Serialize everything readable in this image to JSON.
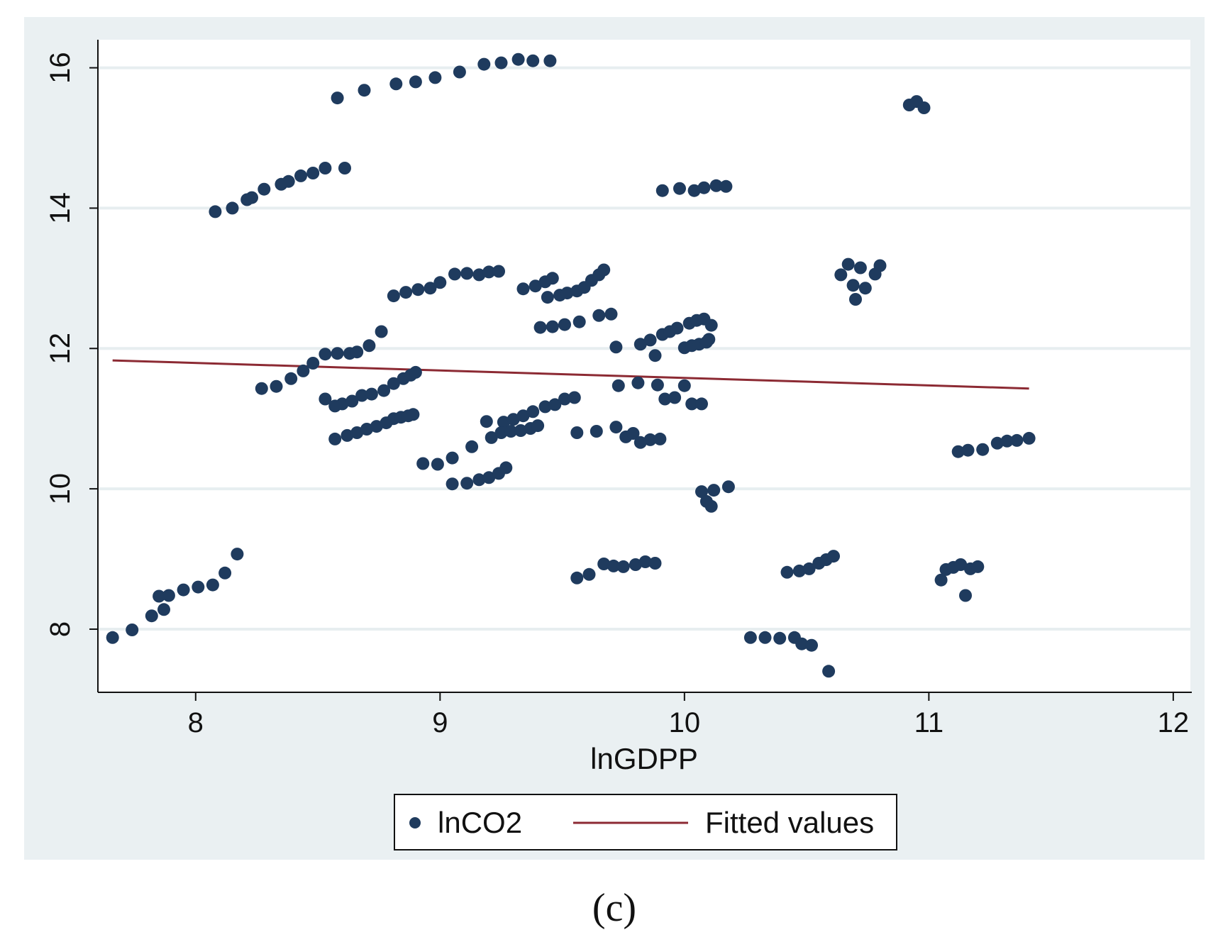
{
  "chart_data": {
    "type": "scatter",
    "panel_label": "(c)",
    "xlabel": "lnGDPP",
    "ylabel": "",
    "xlim": [
      7.6,
      12.07
    ],
    "ylim": [
      7.1,
      16.4
    ],
    "xticks": [
      8,
      9,
      10,
      11,
      12
    ],
    "xtick_labels": [
      "8",
      "9",
      "10",
      "11",
      "12"
    ],
    "yticks": [
      8,
      10,
      12,
      14,
      16
    ],
    "ytick_labels": [
      "8",
      "10",
      "12",
      "14",
      "16"
    ],
    "grid": "horizontal",
    "legend": {
      "position": "bottom",
      "entries": [
        "lnCO2",
        "Fitted values"
      ]
    },
    "colors": {
      "scatter": "#1f3b5e",
      "fitted": "#8c2a33",
      "plot_region": "#ffffff",
      "outer_region": "#eaf0f2",
      "grid": "#e7eef0"
    },
    "series": [
      {
        "name": "lnCO2",
        "kind": "scatter",
        "points": [
          [
            7.66,
            7.88
          ],
          [
            7.74,
            7.99
          ],
          [
            7.82,
            8.19
          ],
          [
            7.85,
            8.47
          ],
          [
            7.87,
            8.28
          ],
          [
            7.89,
            8.48
          ],
          [
            7.95,
            8.56
          ],
          [
            8.01,
            8.6
          ],
          [
            8.07,
            8.63
          ],
          [
            8.12,
            8.8
          ],
          [
            8.17,
            9.07
          ],
          [
            8.08,
            13.95
          ],
          [
            8.15,
            14.0
          ],
          [
            8.21,
            14.12
          ],
          [
            8.23,
            14.15
          ],
          [
            8.28,
            14.27
          ],
          [
            8.35,
            14.34
          ],
          [
            8.38,
            14.38
          ],
          [
            8.43,
            14.46
          ],
          [
            8.48,
            14.5
          ],
          [
            8.53,
            14.57
          ],
          [
            8.61,
            14.57
          ],
          [
            8.58,
            15.57
          ],
          [
            8.69,
            15.68
          ],
          [
            8.82,
            15.77
          ],
          [
            8.9,
            15.8
          ],
          [
            8.98,
            15.86
          ],
          [
            9.08,
            15.94
          ],
          [
            9.18,
            16.05
          ],
          [
            9.25,
            16.07
          ],
          [
            9.32,
            16.12
          ],
          [
            9.38,
            16.1
          ],
          [
            9.45,
            16.1
          ],
          [
            8.27,
            11.43
          ],
          [
            8.33,
            11.46
          ],
          [
            8.39,
            11.57
          ],
          [
            8.44,
            11.68
          ],
          [
            8.48,
            11.79
          ],
          [
            8.53,
            11.92
          ],
          [
            8.58,
            11.93
          ],
          [
            8.63,
            11.93
          ],
          [
            8.66,
            11.95
          ],
          [
            8.71,
            12.04
          ],
          [
            8.76,
            12.24
          ],
          [
            8.53,
            11.28
          ],
          [
            8.57,
            11.18
          ],
          [
            8.6,
            11.21
          ],
          [
            8.64,
            11.25
          ],
          [
            8.68,
            11.33
          ],
          [
            8.72,
            11.35
          ],
          [
            8.77,
            11.4
          ],
          [
            8.81,
            11.5
          ],
          [
            8.85,
            11.57
          ],
          [
            8.88,
            11.62
          ],
          [
            8.9,
            11.66
          ],
          [
            8.57,
            10.71
          ],
          [
            8.62,
            10.76
          ],
          [
            8.66,
            10.8
          ],
          [
            8.7,
            10.85
          ],
          [
            8.74,
            10.89
          ],
          [
            8.78,
            10.94
          ],
          [
            8.81,
            11.0
          ],
          [
            8.84,
            11.02
          ],
          [
            8.87,
            11.04
          ],
          [
            8.89,
            11.06
          ],
          [
            8.81,
            12.75
          ],
          [
            8.86,
            12.8
          ],
          [
            8.91,
            12.84
          ],
          [
            8.96,
            12.86
          ],
          [
            9.0,
            12.94
          ],
          [
            9.06,
            13.06
          ],
          [
            9.11,
            13.07
          ],
          [
            9.16,
            13.05
          ],
          [
            9.2,
            13.09
          ],
          [
            9.24,
            13.1
          ],
          [
            8.93,
            10.36
          ],
          [
            8.99,
            10.35
          ],
          [
            9.05,
            10.44
          ],
          [
            9.13,
            10.6
          ],
          [
            9.21,
            10.73
          ],
          [
            9.19,
            10.96
          ],
          [
            9.26,
            10.95
          ],
          [
            9.3,
            10.99
          ],
          [
            9.34,
            11.04
          ],
          [
            9.38,
            11.1
          ],
          [
            9.43,
            11.17
          ],
          [
            9.47,
            11.2
          ],
          [
            9.51,
            11.28
          ],
          [
            9.55,
            11.3
          ],
          [
            9.05,
            10.07
          ],
          [
            9.11,
            10.08
          ],
          [
            9.16,
            10.13
          ],
          [
            9.2,
            10.16
          ],
          [
            9.24,
            10.22
          ],
          [
            9.27,
            10.3
          ],
          [
            9.25,
            10.8
          ],
          [
            9.29,
            10.82
          ],
          [
            9.33,
            10.83
          ],
          [
            9.37,
            10.86
          ],
          [
            9.4,
            10.9
          ],
          [
            9.34,
            12.85
          ],
          [
            9.39,
            12.89
          ],
          [
            9.43,
            12.95
          ],
          [
            9.46,
            13.0
          ],
          [
            9.44,
            12.73
          ],
          [
            9.49,
            12.76
          ],
          [
            9.52,
            12.79
          ],
          [
            9.56,
            12.82
          ],
          [
            9.59,
            12.87
          ],
          [
            9.62,
            12.97
          ],
          [
            9.65,
            13.05
          ],
          [
            9.67,
            13.12
          ],
          [
            9.41,
            12.3
          ],
          [
            9.46,
            12.31
          ],
          [
            9.51,
            12.34
          ],
          [
            9.57,
            12.38
          ],
          [
            9.65,
            12.47
          ],
          [
            9.7,
            12.49
          ],
          [
            9.72,
            12.02
          ],
          [
            9.56,
            10.8
          ],
          [
            9.64,
            10.82
          ],
          [
            9.72,
            10.88
          ],
          [
            9.76,
            10.74
          ],
          [
            9.79,
            10.79
          ],
          [
            9.82,
            10.66
          ],
          [
            9.86,
            10.7
          ],
          [
            9.9,
            10.71
          ],
          [
            9.56,
            8.73
          ],
          [
            9.61,
            8.78
          ],
          [
            9.67,
            8.93
          ],
          [
            9.71,
            8.9
          ],
          [
            9.75,
            8.89
          ],
          [
            9.8,
            8.92
          ],
          [
            9.84,
            8.96
          ],
          [
            9.88,
            8.94
          ],
          [
            9.73,
            11.47
          ],
          [
            9.81,
            11.51
          ],
          [
            9.89,
            11.48
          ],
          [
            9.92,
            11.28
          ],
          [
            9.96,
            11.3
          ],
          [
            10.0,
            11.47
          ],
          [
            10.03,
            11.21
          ],
          [
            10.07,
            11.21
          ],
          [
            9.82,
            12.06
          ],
          [
            9.86,
            12.12
          ],
          [
            9.88,
            11.9
          ],
          [
            9.91,
            12.2
          ],
          [
            9.94,
            12.24
          ],
          [
            9.97,
            12.29
          ],
          [
            10.0,
            12.01
          ],
          [
            10.03,
            12.04
          ],
          [
            10.06,
            12.06
          ],
          [
            10.09,
            12.09
          ],
          [
            10.1,
            12.13
          ],
          [
            10.02,
            12.36
          ],
          [
            10.05,
            12.4
          ],
          [
            10.08,
            12.42
          ],
          [
            10.11,
            12.33
          ],
          [
            9.91,
            14.25
          ],
          [
            9.98,
            14.28
          ],
          [
            10.04,
            14.25
          ],
          [
            10.08,
            14.29
          ],
          [
            10.13,
            14.32
          ],
          [
            10.17,
            14.31
          ],
          [
            10.07,
            9.96
          ],
          [
            10.09,
            9.82
          ],
          [
            10.11,
            9.75
          ],
          [
            10.12,
            9.98
          ],
          [
            10.18,
            10.03
          ],
          [
            10.27,
            7.88
          ],
          [
            10.33,
            7.88
          ],
          [
            10.39,
            7.87
          ],
          [
            10.45,
            7.88
          ],
          [
            10.48,
            7.79
          ],
          [
            10.52,
            7.77
          ],
          [
            10.59,
            7.4
          ],
          [
            10.42,
            8.81
          ],
          [
            10.47,
            8.83
          ],
          [
            10.51,
            8.86
          ],
          [
            10.55,
            8.94
          ],
          [
            10.58,
            8.99
          ],
          [
            10.61,
            9.04
          ],
          [
            10.64,
            13.05
          ],
          [
            10.67,
            13.2
          ],
          [
            10.69,
            12.9
          ],
          [
            10.7,
            12.7
          ],
          [
            10.72,
            13.15
          ],
          [
            10.74,
            12.86
          ],
          [
            10.78,
            13.06
          ],
          [
            10.8,
            13.18
          ],
          [
            10.92,
            15.47
          ],
          [
            10.95,
            15.52
          ],
          [
            10.98,
            15.43
          ],
          [
            11.05,
            8.7
          ],
          [
            11.07,
            8.85
          ],
          [
            11.1,
            8.88
          ],
          [
            11.13,
            8.92
          ],
          [
            11.15,
            8.48
          ],
          [
            11.17,
            8.86
          ],
          [
            11.2,
            8.89
          ],
          [
            11.12,
            10.53
          ],
          [
            11.16,
            10.55
          ],
          [
            11.22,
            10.56
          ],
          [
            11.28,
            10.65
          ],
          [
            11.32,
            10.68
          ],
          [
            11.36,
            10.69
          ],
          [
            11.41,
            10.72
          ]
        ]
      },
      {
        "name": "Fitted values",
        "kind": "line",
        "points": [
          [
            7.66,
            11.83
          ],
          [
            11.41,
            11.43
          ]
        ]
      }
    ]
  }
}
